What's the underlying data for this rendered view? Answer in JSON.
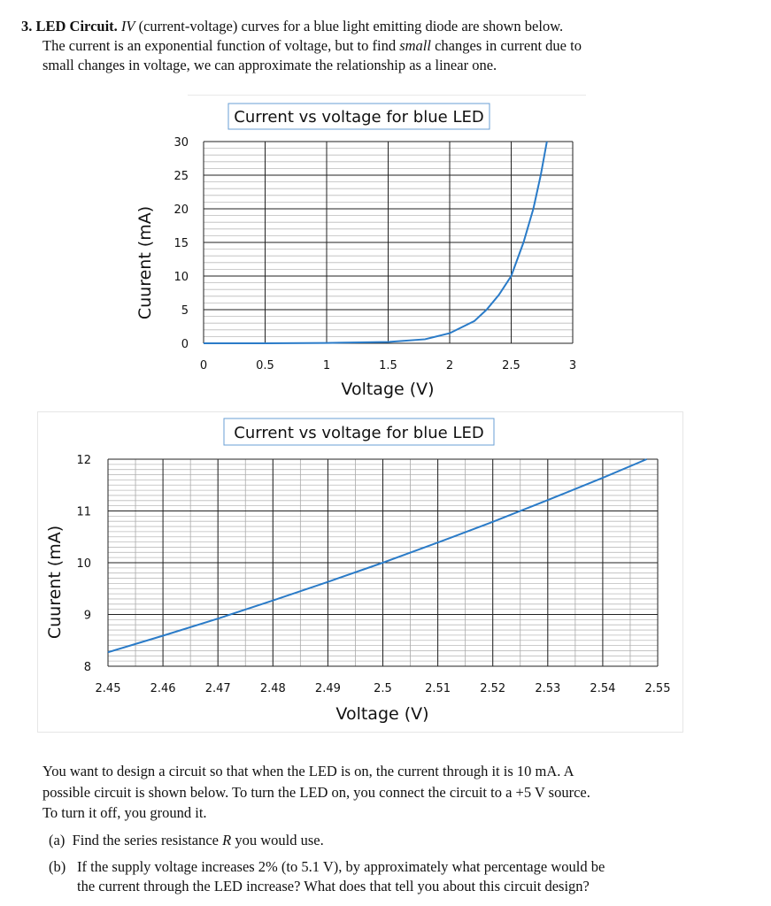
{
  "problem": {
    "number": "3.",
    "title": "LED Circuit.",
    "intro_lines": [
      [
        "IV",
        "(current-voltage) curves for a blue light emitting diode are shown below."
      ],
      [
        "The current is an exponential function of voltage, but to find ",
        "small",
        " changes in current due to"
      ],
      [
        "small changes in voltage, we can approximate the relationship as a linear one."
      ]
    ],
    "body_lines": [
      "You want to design a circuit so that when the LED is on, the current through it is 10 mA. A",
      "possible circuit is shown below. To turn the LED on, you connect the circuit to a +5 V source.",
      "To turn it off, you ground it."
    ],
    "part_a": {
      "label": "(a)",
      "text_pre": "Find the series resistance ",
      "var": "R",
      "text_post": " you would use."
    },
    "part_b": {
      "label": "(b)",
      "lines": [
        "If the supply voltage increases 2% (to 5.1 V), by approximately what percentage would be",
        "the current through the LED increase? What does that tell you about this circuit design?"
      ]
    }
  },
  "chart_data": [
    {
      "type": "line",
      "title": "Current vs voltage for blue LED",
      "xlabel": "Voltage (V)",
      "ylabel": "Cuurent (mA)",
      "xlim": [
        0,
        3
      ],
      "ylim": [
        0,
        30
      ],
      "grid": true,
      "line_color": "#2a7bc8",
      "xticks": [
        "0",
        "0.5",
        "1",
        "1.5",
        "2",
        "2.5",
        "3"
      ],
      "yticks": [
        "0",
        "5",
        "10",
        "15",
        "20",
        "25",
        "30"
      ],
      "x": [
        0,
        0.5,
        1,
        1.5,
        1.8,
        2,
        2.2,
        2.3,
        2.4,
        2.5,
        2.6,
        2.68,
        2.74,
        2.79
      ],
      "y": [
        0,
        0,
        0.05,
        0.2,
        0.6,
        1.5,
        3.3,
        5,
        7.2,
        10,
        15,
        20,
        25,
        30
      ]
    },
    {
      "type": "line",
      "title": "Current vs voltage for blue LED",
      "xlabel": "Voltage (V)",
      "ylabel": "Cuurent (mA)",
      "xlim": [
        2.45,
        2.55
      ],
      "ylim": [
        8,
        12
      ],
      "grid": true,
      "line_color": "#2a7bc8",
      "xticks": [
        "2.45",
        "2.46",
        "2.47",
        "2.48",
        "2.49",
        "2.5",
        "2.51",
        "2.52",
        "2.53",
        "2.54",
        "2.55"
      ],
      "yticks": [
        "8",
        "9",
        "10",
        "11",
        "12"
      ],
      "x": [
        2.45,
        2.46,
        2.47,
        2.48,
        2.49,
        2.5,
        2.51,
        2.52,
        2.53,
        2.54,
        2.548
      ],
      "y": [
        8.27,
        8.59,
        8.92,
        9.27,
        9.63,
        10,
        10.39,
        10.79,
        11.21,
        11.64,
        12
      ]
    }
  ]
}
